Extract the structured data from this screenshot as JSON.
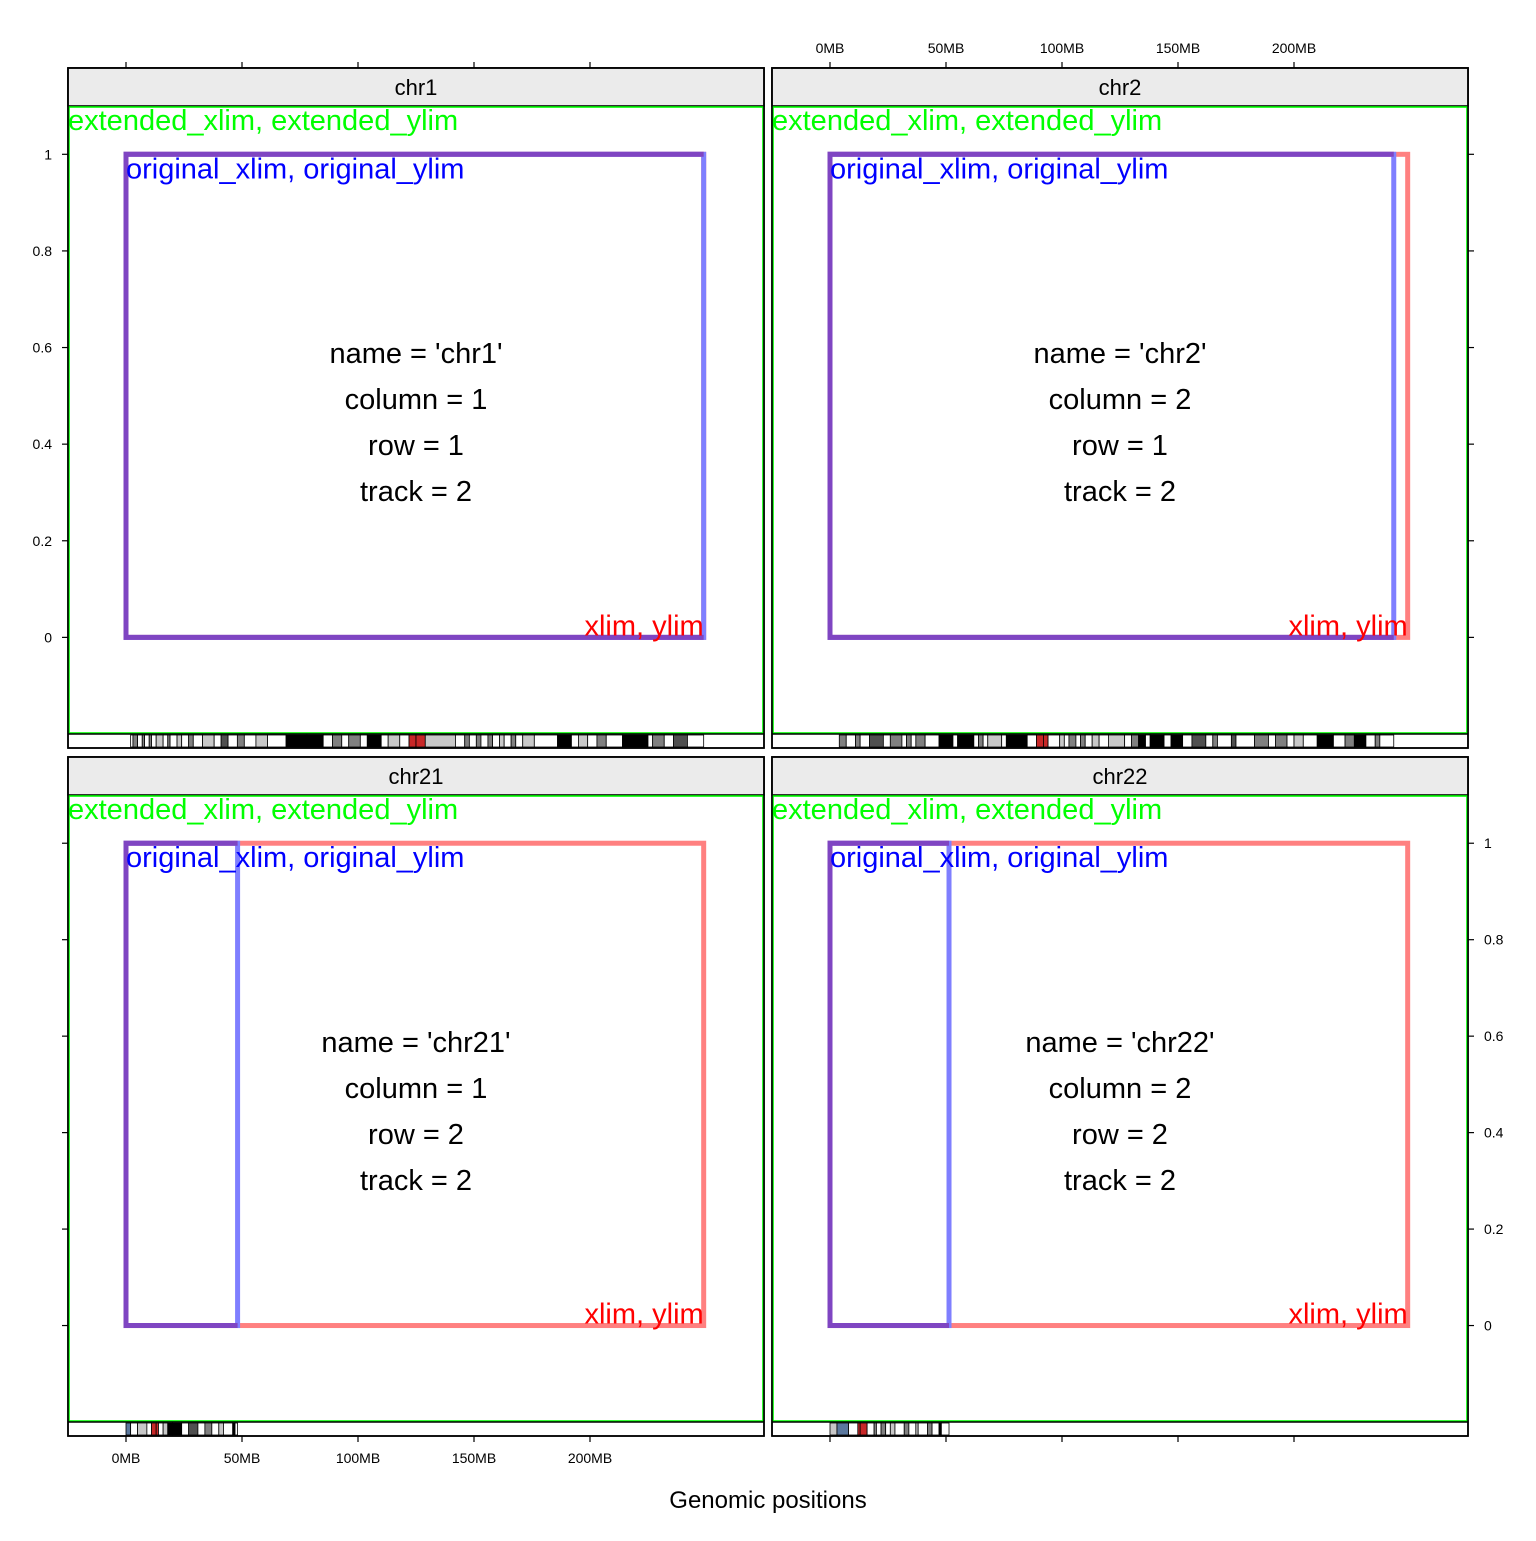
{
  "chart_data": {
    "type": "line",
    "xlabel": "Genomic positions",
    "x_ticks": [
      "0MB",
      "50MB",
      "100MB",
      "150MB",
      "200MB"
    ],
    "y_ticks": [
      "0",
      "0.2",
      "0.4",
      "0.6",
      "0.8",
      "1"
    ],
    "xlim": [
      -25,
      275
    ],
    "ylim": [
      -0.2,
      1.1
    ],
    "box_labels": {
      "extended": "extended_xlim, extended_ylim",
      "original": "original_xlim, original_ylim",
      "current": "xlim, ylim"
    },
    "colors": {
      "extended": "#00ff00",
      "original": "#7f7fff",
      "current": "#ff8080",
      "overlap": "#7f45c2",
      "original_text": "#0000ff",
      "current_text": "#ff0000",
      "strip_bg": "#ebebeb",
      "cen": "#c82828",
      "stalk": "#5b789e"
    },
    "panels": [
      {
        "name": "chr1",
        "info": [
          "name = 'chr1'",
          "column = 1",
          "row = 1",
          "track = 2"
        ],
        "original_xlim": [
          0,
          249
        ],
        "current_xlim": [
          0,
          249
        ],
        "bands": [
          [
            2,
            3,
            "w"
          ],
          [
            3,
            5,
            "g"
          ],
          [
            5,
            7,
            "w"
          ],
          [
            7,
            8,
            "g"
          ],
          [
            8,
            10,
            "w"
          ],
          [
            10,
            11,
            "g"
          ],
          [
            11,
            13,
            "w"
          ],
          [
            13,
            16,
            "l"
          ],
          [
            16,
            18,
            "w"
          ],
          [
            18,
            19,
            "g"
          ],
          [
            19,
            22,
            "w"
          ],
          [
            22,
            24,
            "l"
          ],
          [
            24,
            27,
            "w"
          ],
          [
            27,
            29,
            "g"
          ],
          [
            29,
            33,
            "w"
          ],
          [
            33,
            38,
            "l"
          ],
          [
            38,
            41,
            "w"
          ],
          [
            41,
            44,
            "d"
          ],
          [
            44,
            48,
            "w"
          ],
          [
            48,
            51,
            "g"
          ],
          [
            51,
            56,
            "w"
          ],
          [
            56,
            61,
            "l"
          ],
          [
            61,
            69,
            "w"
          ],
          [
            69,
            78,
            "b"
          ],
          [
            78,
            85,
            "b"
          ],
          [
            85,
            89,
            "w"
          ],
          [
            89,
            93,
            "g"
          ],
          [
            93,
            96,
            "w"
          ],
          [
            96,
            101,
            "g"
          ],
          [
            101,
            104,
            "w"
          ],
          [
            104,
            110,
            "b"
          ],
          [
            110,
            113,
            "w"
          ],
          [
            113,
            118,
            "l"
          ],
          [
            118,
            122,
            "w"
          ],
          [
            122,
            125,
            "c"
          ],
          [
            125,
            129,
            "c"
          ],
          [
            129,
            142,
            "l"
          ],
          [
            142,
            146,
            "w"
          ],
          [
            146,
            148,
            "g"
          ],
          [
            148,
            151,
            "w"
          ],
          [
            151,
            153,
            "g"
          ],
          [
            153,
            156,
            "w"
          ],
          [
            156,
            158,
            "g"
          ],
          [
            158,
            161,
            "w"
          ],
          [
            161,
            163,
            "l"
          ],
          [
            163,
            166,
            "w"
          ],
          [
            166,
            168,
            "g"
          ],
          [
            168,
            171,
            "w"
          ],
          [
            171,
            176,
            "l"
          ],
          [
            176,
            186,
            "w"
          ],
          [
            186,
            192,
            "b"
          ],
          [
            192,
            195,
            "w"
          ],
          [
            195,
            199,
            "l"
          ],
          [
            199,
            203,
            "w"
          ],
          [
            203,
            207,
            "g"
          ],
          [
            207,
            214,
            "w"
          ],
          [
            214,
            225,
            "b"
          ],
          [
            225,
            227,
            "w"
          ],
          [
            227,
            232,
            "g"
          ],
          [
            232,
            236,
            "w"
          ],
          [
            236,
            242,
            "d"
          ],
          [
            242,
            249,
            "w"
          ]
        ]
      },
      {
        "name": "chr2",
        "info": [
          "name = 'chr2'",
          "column = 2",
          "row = 1",
          "track = 2"
        ],
        "original_xlim": [
          0,
          243
        ],
        "current_xlim": [
          0,
          249
        ],
        "bands": [
          [
            4,
            7,
            "g"
          ],
          [
            7,
            11,
            "w"
          ],
          [
            11,
            13,
            "g"
          ],
          [
            13,
            17,
            "w"
          ],
          [
            17,
            23,
            "d"
          ],
          [
            23,
            26,
            "w"
          ],
          [
            26,
            31,
            "g"
          ],
          [
            31,
            33,
            "w"
          ],
          [
            33,
            35,
            "g"
          ],
          [
            35,
            37,
            "w"
          ],
          [
            37,
            41,
            "g"
          ],
          [
            41,
            47,
            "w"
          ],
          [
            47,
            53,
            "b"
          ],
          [
            53,
            55,
            "w"
          ],
          [
            55,
            62,
            "b"
          ],
          [
            62,
            64,
            "w"
          ],
          [
            64,
            66,
            "g"
          ],
          [
            66,
            68,
            "w"
          ],
          [
            68,
            74,
            "l"
          ],
          [
            74,
            76,
            "w"
          ],
          [
            76,
            85,
            "b"
          ],
          [
            85,
            89,
            "w"
          ],
          [
            89,
            92,
            "c"
          ],
          [
            92,
            94,
            "c"
          ],
          [
            94,
            99,
            "w"
          ],
          [
            99,
            101,
            "l"
          ],
          [
            101,
            103,
            "w"
          ],
          [
            103,
            106,
            "g"
          ],
          [
            106,
            108,
            "w"
          ],
          [
            108,
            110,
            "g"
          ],
          [
            110,
            113,
            "w"
          ],
          [
            113,
            116,
            "l"
          ],
          [
            116,
            120,
            "w"
          ],
          [
            120,
            127,
            "l"
          ],
          [
            127,
            130,
            "w"
          ],
          [
            130,
            133,
            "g"
          ],
          [
            133,
            136,
            "b"
          ],
          [
            136,
            138,
            "w"
          ],
          [
            138,
            144,
            "b"
          ],
          [
            144,
            147,
            "w"
          ],
          [
            147,
            152,
            "b"
          ],
          [
            152,
            156,
            "w"
          ],
          [
            156,
            162,
            "d"
          ],
          [
            162,
            165,
            "w"
          ],
          [
            165,
            167,
            "g"
          ],
          [
            167,
            173,
            "w"
          ],
          [
            173,
            175,
            "d"
          ],
          [
            175,
            183,
            "w"
          ],
          [
            183,
            189,
            "g"
          ],
          [
            189,
            192,
            "w"
          ],
          [
            192,
            197,
            "g"
          ],
          [
            197,
            200,
            "w"
          ],
          [
            200,
            204,
            "l"
          ],
          [
            204,
            210,
            "w"
          ],
          [
            210,
            217,
            "b"
          ],
          [
            217,
            222,
            "w"
          ],
          [
            222,
            226,
            "g"
          ],
          [
            226,
            231,
            "b"
          ],
          [
            231,
            235,
            "w"
          ],
          [
            235,
            237,
            "g"
          ],
          [
            237,
            243,
            "w"
          ]
        ]
      },
      {
        "name": "chr21",
        "info": [
          "name = 'chr21'",
          "column = 1",
          "row = 2",
          "track = 2"
        ],
        "original_xlim": [
          0,
          48.1
        ],
        "current_xlim": [
          0,
          249
        ],
        "bands": [
          [
            0,
            2,
            "s"
          ],
          [
            2,
            5,
            "w"
          ],
          [
            5,
            9,
            "l"
          ],
          [
            9,
            11,
            "w"
          ],
          [
            11,
            13,
            "c"
          ],
          [
            13,
            14,
            "c"
          ],
          [
            14,
            16,
            "w"
          ],
          [
            16,
            18,
            "l"
          ],
          [
            18,
            20,
            "b"
          ],
          [
            20,
            24,
            "b"
          ],
          [
            24,
            27,
            "w"
          ],
          [
            27,
            31,
            "d"
          ],
          [
            31,
            34,
            "w"
          ],
          [
            34,
            37,
            "g"
          ],
          [
            37,
            40,
            "w"
          ],
          [
            40,
            42,
            "l"
          ],
          [
            42,
            46,
            "w"
          ],
          [
            46,
            47,
            "b"
          ],
          [
            47,
            48.1,
            "w"
          ]
        ]
      },
      {
        "name": "chr22",
        "info": [
          "name = 'chr22'",
          "column = 2",
          "row = 2",
          "track = 2"
        ],
        "original_xlim": [
          0,
          51.3
        ],
        "current_xlim": [
          0,
          249
        ],
        "bands": [
          [
            0,
            3,
            "l"
          ],
          [
            3,
            8,
            "s"
          ],
          [
            8,
            12,
            "w"
          ],
          [
            12,
            13,
            "c"
          ],
          [
            13,
            16,
            "c"
          ],
          [
            16,
            19,
            "w"
          ],
          [
            19,
            20,
            "g"
          ],
          [
            20,
            22,
            "w"
          ],
          [
            22,
            24,
            "g"
          ],
          [
            24,
            26,
            "w"
          ],
          [
            26,
            28,
            "l"
          ],
          [
            28,
            32,
            "w"
          ],
          [
            32,
            34,
            "g"
          ],
          [
            34,
            37,
            "w"
          ],
          [
            37,
            38,
            "l"
          ],
          [
            38,
            42,
            "w"
          ],
          [
            42,
            44,
            "g"
          ],
          [
            44,
            47,
            "w"
          ],
          [
            47,
            48,
            "b"
          ],
          [
            48,
            51.3,
            "w"
          ]
        ]
      }
    ]
  }
}
